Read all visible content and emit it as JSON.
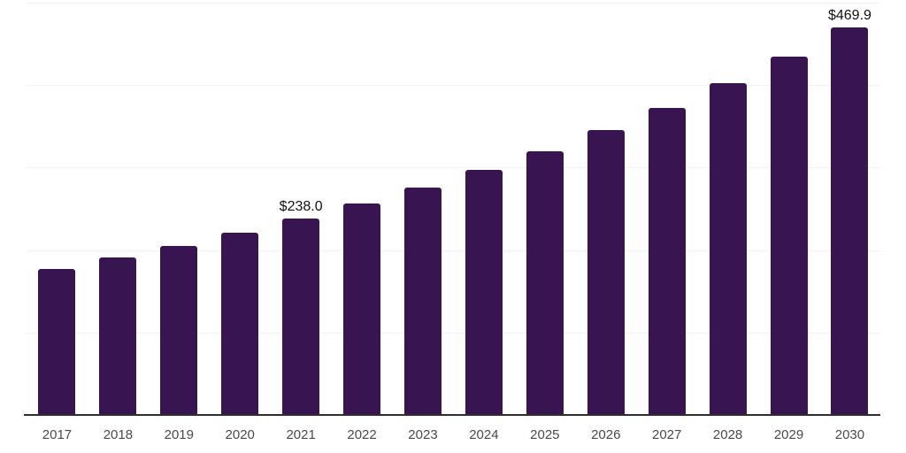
{
  "chart_data": {
    "type": "bar",
    "categories": [
      "2017",
      "2018",
      "2019",
      "2020",
      "2021",
      "2022",
      "2023",
      "2024",
      "2025",
      "2026",
      "2027",
      "2028",
      "2029",
      "2030"
    ],
    "values": [
      177.4,
      190.7,
      204.9,
      220.6,
      238.0,
      256.2,
      275.9,
      297.2,
      320.3,
      345.5,
      372.8,
      402.4,
      434.6,
      469.9
    ],
    "annotations": [
      {
        "category": "2021",
        "label": "$238.0"
      },
      {
        "category": "2030",
        "label": "$469.9"
      }
    ],
    "xlabel": "",
    "ylabel": "",
    "ylim": [
      0,
      500
    ],
    "gridline_levels": [
      100,
      200,
      300,
      400,
      500
    ],
    "grid": "horizontal",
    "legend": "none",
    "value_prefix": "$"
  },
  "colors": {
    "bar_fill": "#381450",
    "gridline": "#f2f2f4",
    "axis_line": "#2e2e2e",
    "tick_label": "#4a4a4a",
    "value_label": "#111111",
    "background": "#ffffff"
  }
}
